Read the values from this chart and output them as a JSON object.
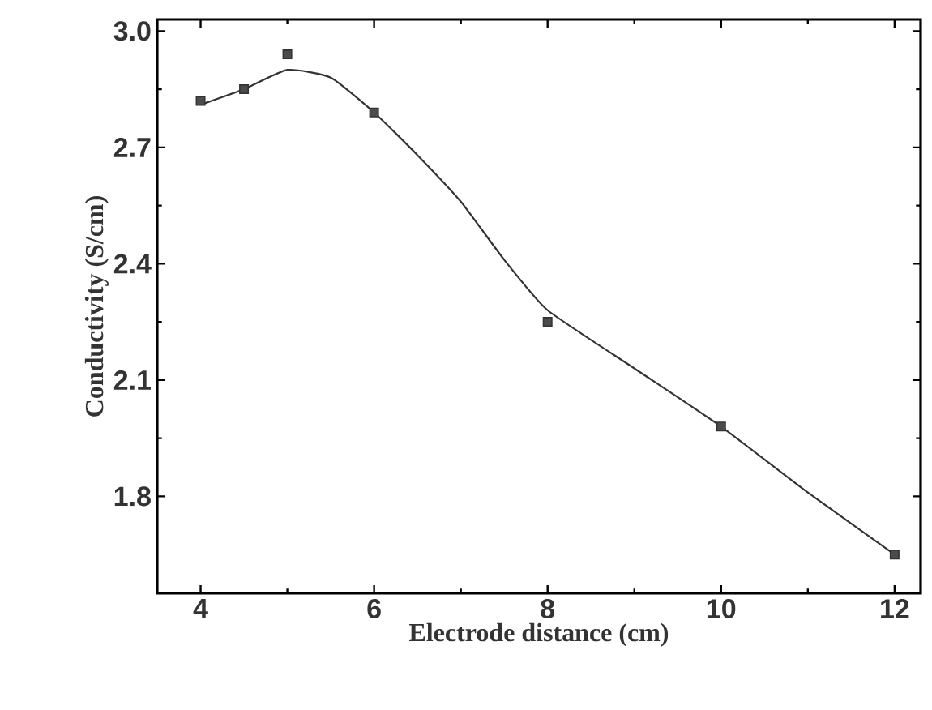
{
  "chart_data": {
    "type": "scatter",
    "xlabel": "Electrode distance (cm)",
    "ylabel": "Conductivity (S/cm)",
    "xlim": [
      3.5,
      12.3
    ],
    "ylim": [
      1.55,
      3.03
    ],
    "xticks": [
      4,
      6,
      8,
      10,
      12
    ],
    "yticks": [
      1.8,
      2.1,
      2.4,
      2.7,
      {
        "value": 3,
        "label": "3.0"
      }
    ],
    "grid": false,
    "series": [
      {
        "color": "#333333",
        "marker": "square",
        "x": [
          4,
          4.5,
          5,
          6,
          8,
          10,
          12
        ],
        "values": [
          2.82,
          2.85,
          2.94,
          2.79,
          2.25,
          1.98,
          1.65
        ]
      },
      {
        "type": "line",
        "color": "#333333",
        "marker": "none",
        "line_style": "solid",
        "x": [
          4,
          4.5,
          5,
          5.5,
          6,
          6.5,
          7,
          7.5,
          8,
          9,
          10,
          11,
          12
        ],
        "values": [
          2.81,
          2.85,
          2.9,
          2.88,
          2.79,
          2.68,
          2.56,
          2.41,
          2.28,
          2.13,
          1.98,
          1.81,
          1.65
        ]
      }
    ]
  }
}
